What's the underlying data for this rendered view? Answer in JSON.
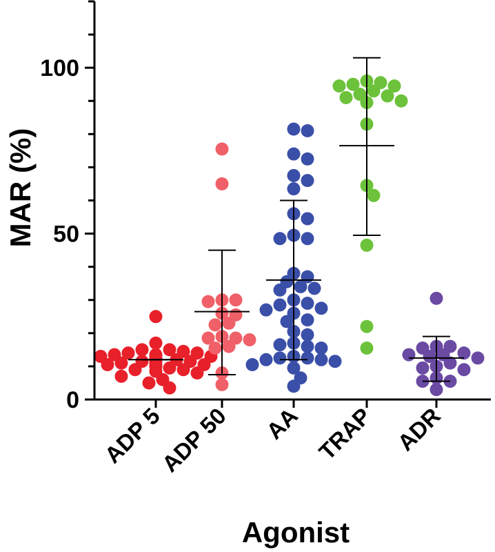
{
  "chart_data": {
    "type": "scatter",
    "title": "",
    "xlabel": "Agonist",
    "ylabel": "MAR (%)",
    "ylim": [
      0,
      120
    ],
    "yticks": [
      0,
      50,
      100
    ],
    "ytick_labels": [
      "0",
      "50",
      "100"
    ],
    "grid": false,
    "legend": "none",
    "categories": [
      "ADP 5",
      "ADP 50",
      "AA",
      "TRAP",
      "ADR"
    ],
    "series": [
      {
        "name": "ADP 5",
        "color": "#e8202a",
        "mean": 12,
        "sd_upper": 12,
        "sd_lower": 12,
        "values": [
          25,
          17,
          15,
          15,
          14.5,
          14,
          14,
          13.5,
          13.5,
          13,
          13,
          12.5,
          12.5,
          12,
          12,
          12,
          11.5,
          11.5,
          11,
          11,
          10.5,
          10.5,
          10,
          10,
          9.5,
          9,
          9,
          8.5,
          8,
          7,
          6,
          5,
          3.5
        ]
      },
      {
        "name": "ADP 50",
        "color": "#f06068",
        "mean": 26.5,
        "sd_upper": 45,
        "sd_lower": 7.5,
        "values": [
          75.5,
          65,
          30,
          30,
          29.5,
          26,
          25.5,
          23,
          22.5,
          19,
          18.5,
          18.5,
          18,
          16,
          15.5,
          8,
          4.5
        ]
      },
      {
        "name": "AA",
        "color": "#3a4fa8",
        "mean": 36,
        "sd_upper": 60,
        "sd_lower": 12,
        "values": [
          81.5,
          81,
          74,
          72.5,
          67.5,
          66,
          63.5,
          56,
          54.5,
          49.5,
          48.5,
          48.5,
          38,
          37,
          35.5,
          34,
          33.5,
          33,
          30,
          29,
          28.5,
          27.5,
          27,
          26,
          24,
          23.5,
          20.5,
          19.5,
          17,
          16.5,
          16,
          15.5,
          13,
          12.5,
          12.5,
          12,
          12,
          11.5,
          10.5,
          9.5,
          6.5,
          4
        ]
      },
      {
        "name": "TRAP",
        "color": "#6cc23a",
        "mean": 76.5,
        "sd_upper": 103,
        "sd_lower": 49.5,
        "values": [
          96,
          95.5,
          95,
          94.5,
          94.5,
          93,
          92,
          91.5,
          91,
          90,
          89.5,
          83,
          64.5,
          61.5,
          46.5,
          22,
          15.5
        ]
      },
      {
        "name": "ADR",
        "color": "#6a4aa3",
        "mean": 12.5,
        "sd_upper": 19,
        "sd_lower": 5.5,
        "values": [
          30.5,
          16,
          16,
          15.5,
          14,
          13.5,
          13.5,
          13,
          12.5,
          11,
          10,
          9.5,
          9,
          6.5,
          5.5,
          5.5,
          3
        ]
      }
    ]
  }
}
